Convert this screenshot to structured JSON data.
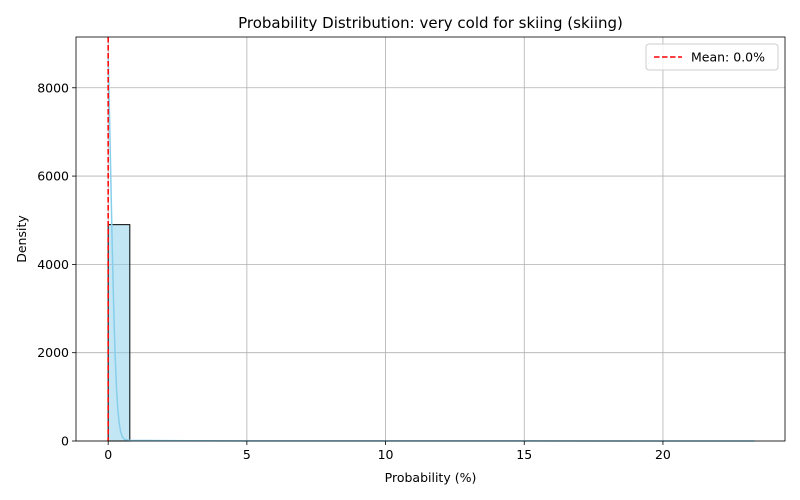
{
  "chart_data": {
    "type": "bar",
    "title": "Probability Distribution: very cold for skiing (skiing)",
    "xlabel": "Probability (%)",
    "ylabel": "Density",
    "xlim": [
      -1.16,
      24.4
    ],
    "ylim": [
      0,
      9150
    ],
    "x_ticks": [
      0,
      5,
      10,
      15,
      20
    ],
    "y_ticks": [
      0,
      2000,
      4000,
      6000,
      8000
    ],
    "grid": true,
    "bins": [
      {
        "x0": 0.0,
        "x1": 0.78,
        "value": 4900
      }
    ],
    "kde": {
      "x": [
        0.0,
        0.05,
        0.1,
        0.15,
        0.2,
        0.25,
        0.3,
        0.35,
        0.4,
        0.45,
        0.5,
        0.55,
        0.6,
        0.7,
        0.8,
        1.0,
        1.5,
        2.0,
        3.0,
        5.0,
        10.0,
        15.0,
        20.0,
        23.3
      ],
      "y": [
        8700,
        7300,
        5800,
        4300,
        3000,
        1950,
        1200,
        700,
        390,
        210,
        110,
        60,
        35,
        20,
        15,
        12,
        10,
        8,
        5,
        3,
        2,
        2,
        1,
        1
      ]
    },
    "mean_line": {
      "x": 0.0,
      "label": "Mean: 0.0%",
      "color": "#ff0000"
    },
    "bar_color": "#87ceeb",
    "kde_color": "#87ceeb",
    "legend": {
      "placement": "top-right",
      "entries": [
        "Mean: 0.0%"
      ]
    }
  }
}
